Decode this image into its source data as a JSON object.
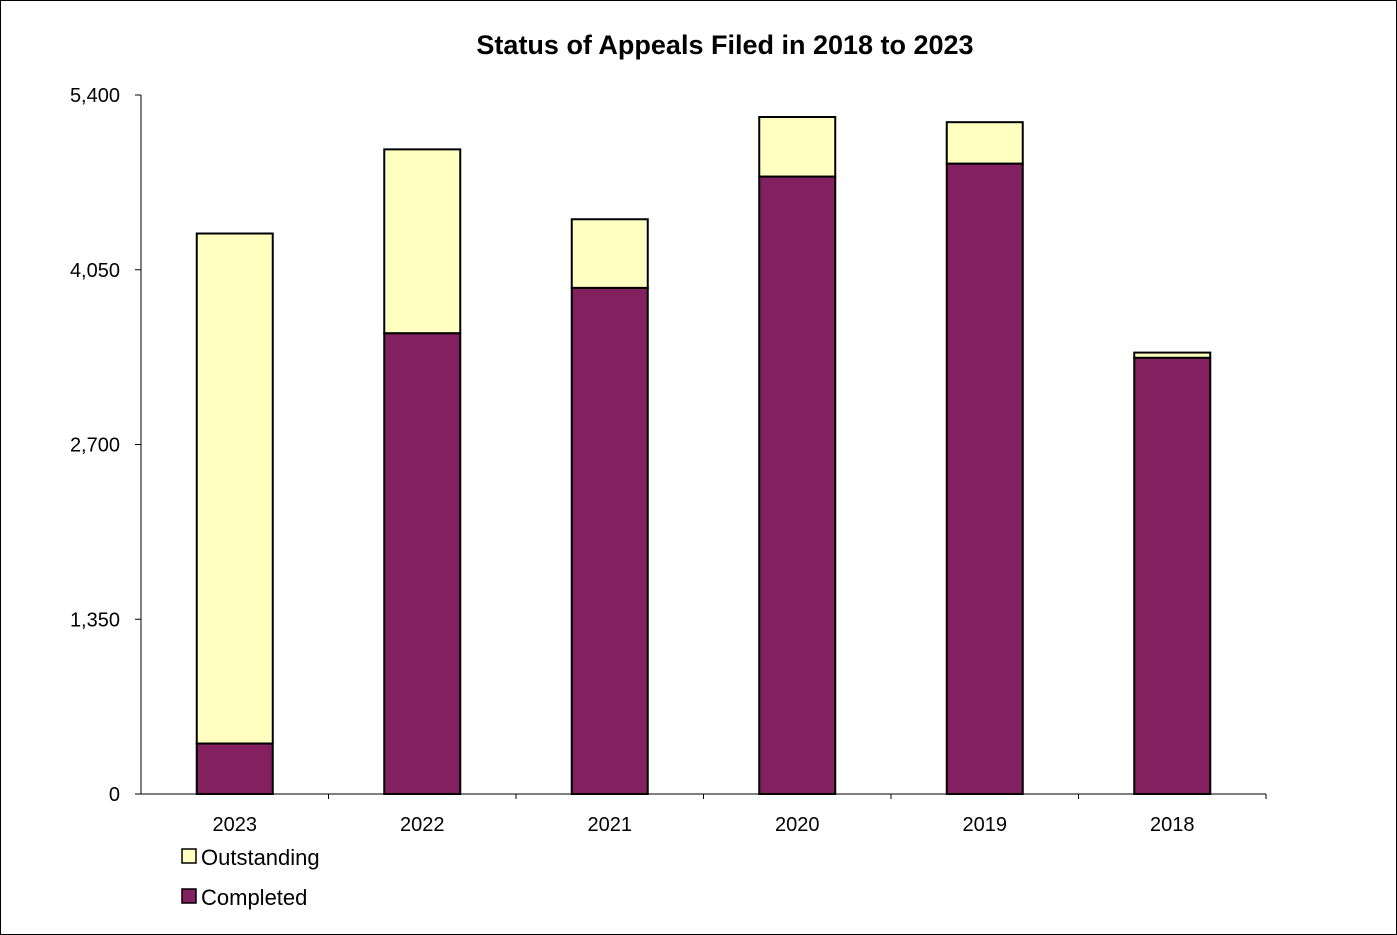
{
  "chart_data": {
    "type": "bar",
    "stacked": true,
    "title": "Status of Appeals Filed in 2018 to 2023",
    "xlabel": "",
    "ylabel": "",
    "categories": [
      "2023",
      "2022",
      "2021",
      "2020",
      "2019",
      "2018"
    ],
    "series": [
      {
        "name": "Completed",
        "color": "#822060",
        "values": [
          390,
          3560,
          3910,
          4770,
          4870,
          3370
        ]
      },
      {
        "name": "Outstanding",
        "color": "#FFFFC0",
        "values": [
          3940,
          1420,
          530,
          460,
          320,
          40
        ]
      }
    ],
    "ylim": [
      0,
      5400
    ],
    "yticks": [
      0,
      1350,
      2700,
      4050,
      5400
    ],
    "ytick_labels": [
      "0",
      "1,350",
      "2,700",
      "4,050",
      "5,400"
    ],
    "grid": false,
    "legend": {
      "placement": "bottom-left",
      "entries": [
        "Outstanding",
        "Completed"
      ]
    }
  }
}
